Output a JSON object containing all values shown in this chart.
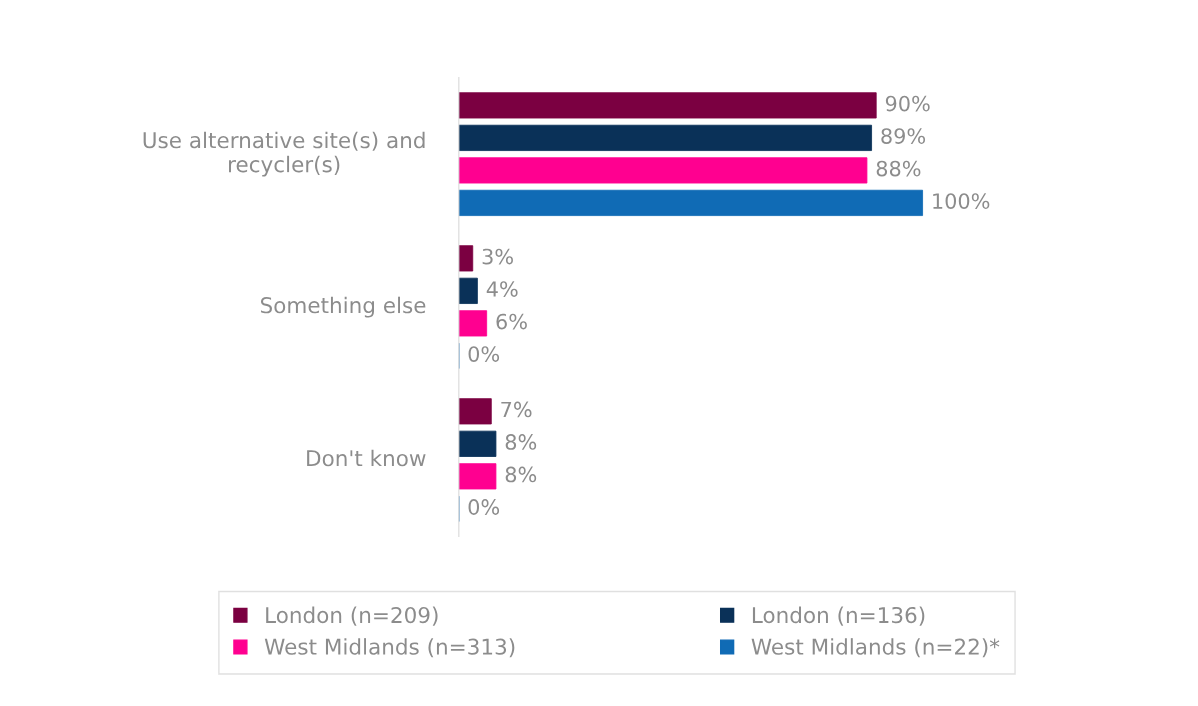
{
  "chart_data": {
    "type": "bar",
    "orientation": "horizontal",
    "categories": [
      "Use alternative site(s) and recycler(s)",
      "Something else",
      "Don't know"
    ],
    "series": [
      {
        "name": "London (n=209)",
        "color": "#7b0041",
        "values": [
          90,
          3,
          7
        ],
        "value_labels": [
          "90%",
          "3%",
          "7%"
        ]
      },
      {
        "name": "London (n=136)",
        "color": "#0a3158",
        "values": [
          89,
          4,
          8
        ],
        "value_labels": [
          "89%",
          "4%",
          "8%"
        ]
      },
      {
        "name": "West Midlands (n=313)",
        "color": "#ff0090",
        "values": [
          88,
          6,
          8
        ],
        "value_labels": [
          "88%",
          "6%",
          "8%"
        ]
      },
      {
        "name": "West Midlands (n=22)*",
        "color": "#106bb5",
        "values": [
          100,
          0,
          0
        ],
        "value_labels": [
          "100%",
          "0%",
          "0%"
        ]
      }
    ],
    "legend": "bottom",
    "grid": false,
    "tick_labels": "y"
  }
}
